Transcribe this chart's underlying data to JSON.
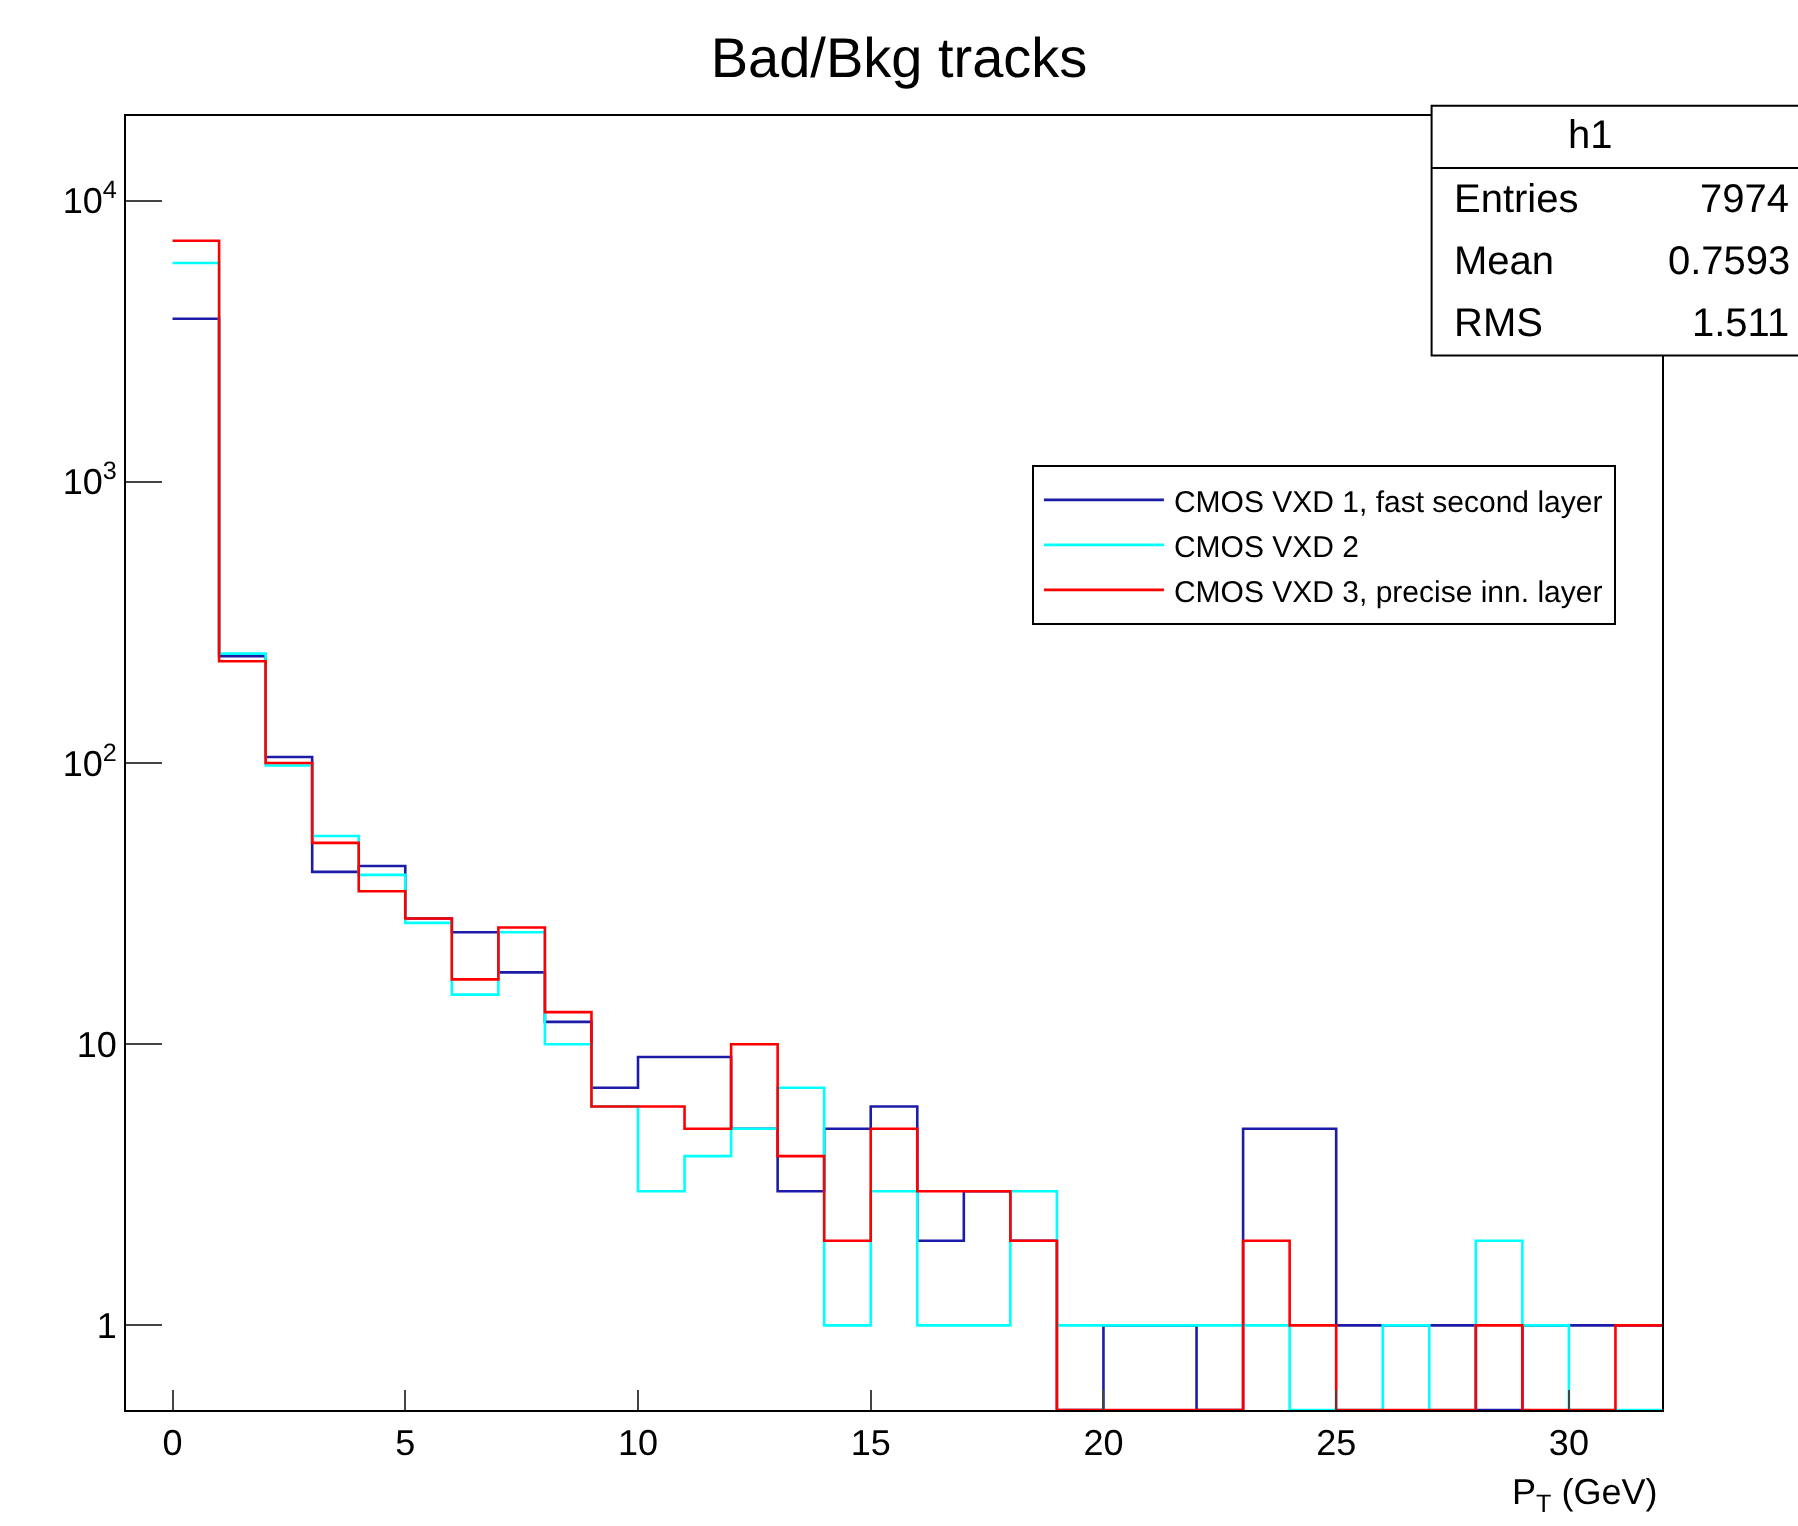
{
  "chart_data": {
    "type": "histogram",
    "title": "Bad/Bkg tracks",
    "xlabel": "P$_{T}$ (GeV)",
    "bins": [
      0,
      1,
      2,
      3,
      4,
      5,
      6,
      7,
      8,
      9,
      10,
      11,
      12,
      13,
      14,
      15,
      16,
      17,
      18,
      19,
      20,
      21,
      22,
      23,
      24,
      25,
      26,
      27,
      28,
      29,
      30,
      31,
      32
    ],
    "series": [
      {
        "name": "CMOS VXD 1, fast second layer",
        "color": "#1c1ca8",
        "values": [
          3800,
          240,
          105,
          41,
          43,
          28,
          25,
          18,
          12,
          7,
          9,
          9,
          5,
          3,
          5,
          6,
          2,
          3,
          2,
          null,
          1,
          1,
          null,
          5,
          5,
          1,
          1,
          1,
          null,
          1,
          1,
          1
        ]
      },
      {
        "name": "CMOS VXD 2",
        "color": "#00ffff",
        "values": [
          6000,
          245,
          98,
          55,
          40,
          27,
          15,
          25,
          10,
          6,
          3,
          4,
          5,
          7,
          1,
          3,
          1,
          1,
          3,
          1,
          1,
          1,
          1,
          1,
          null,
          null,
          1,
          null,
          2,
          1,
          null,
          null
        ]
      },
      {
        "name": "CMOS VXD 3, precise inn. layer",
        "color": "#ff0000",
        "values": [
          7200,
          230,
          100,
          52,
          35,
          28,
          17,
          26,
          13,
          6,
          6,
          5,
          10,
          4,
          2,
          5,
          3,
          3,
          2,
          null,
          null,
          null,
          null,
          2,
          1,
          null,
          null,
          null,
          1,
          null,
          null,
          1
        ]
      }
    ],
    "xlim": [
      -1,
      32
    ],
    "xticks": [
      0,
      5,
      10,
      15,
      20,
      25,
      30
    ],
    "ylim": [
      0.5,
      20000
    ],
    "log": true,
    "yticks": [
      1,
      10,
      {
        "value": 100,
        "label": "10$^{2}$"
      },
      {
        "value": 1000,
        "label": "10$^{3}$"
      },
      {
        "value": 10000,
        "label": "10$^{4}$"
      }
    ],
    "annotations": [
      "h1",
      "Entries",
      "7974",
      "Mean",
      "0.7593",
      "RMS",
      "1.511"
    ],
    "legend": "right",
    "grid": false
  }
}
